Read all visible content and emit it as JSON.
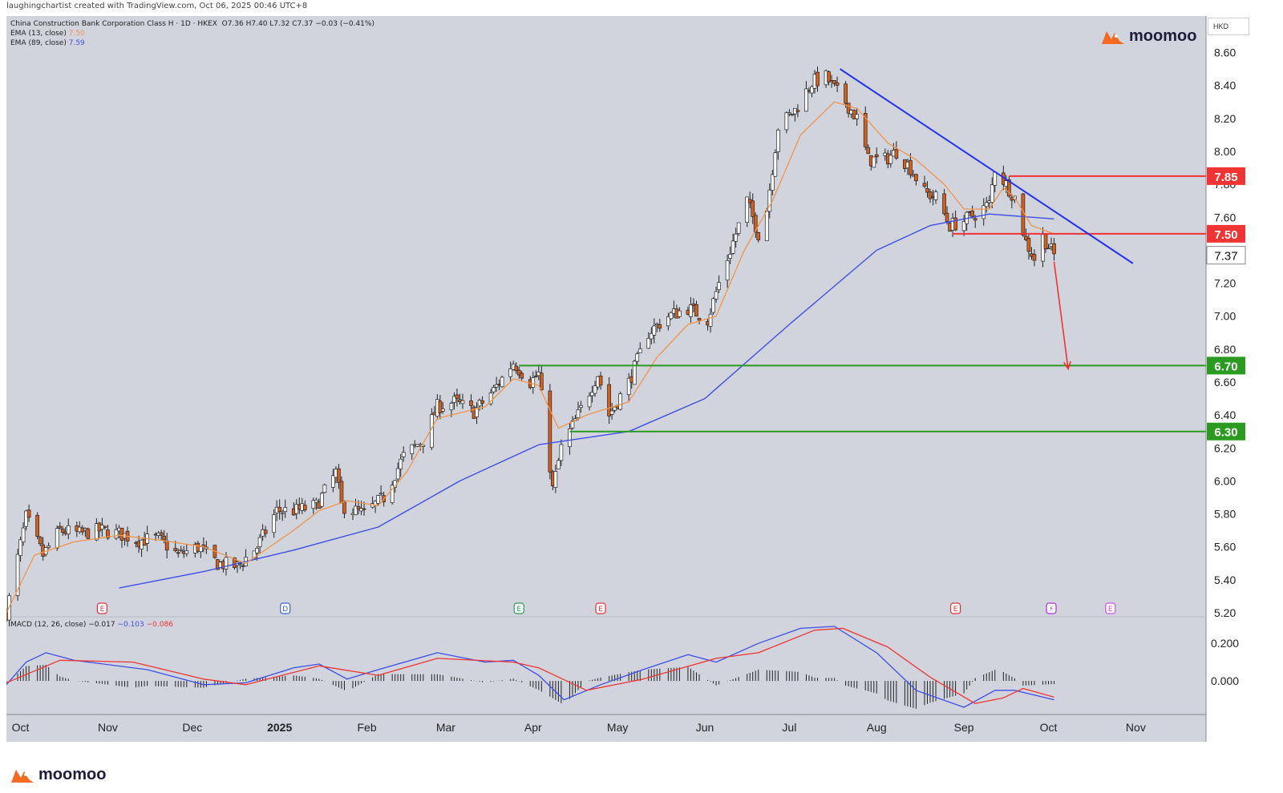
{
  "header": {
    "credit": "laughingchartist created with TradingView.com, Oct 06, 2025 00:46 UTC+8"
  },
  "legend": {
    "symbol": "China Construction Bank Corporation Class H · 1D · HKEX",
    "ohlc": "O7.36  H7.40  L7.32  C7.37  −0.03 (−0.41%)",
    "ema13_label": "EMA (13, close)",
    "ema13_value": "7.50",
    "ema89_label": "EMA (89, close)",
    "ema89_value": "7.59",
    "macd_label": "MACD (12, 26, close)",
    "macd_hist": "−0.017",
    "macd_line": "−0.103",
    "macd_signal": "−0.086"
  },
  "logo": {
    "text": "moomoo"
  },
  "currency": "HKD",
  "colors": {
    "background": "#d1d4dc",
    "candle_up": "#ffffff",
    "candle_down": "#d35f1f",
    "ema13": "#f0944a",
    "ema89": "#3d4fe6",
    "trendline": "#2432f0",
    "resistance": "#f03333",
    "support": "#2a9a20",
    "macd": "#3d4fe6",
    "signal": "#f03333"
  },
  "chart_data": {
    "type": "candlestick",
    "ylim": [
      5.2,
      8.7
    ],
    "y_ticks": [
      "8.60",
      "8.40",
      "8.20",
      "8.00",
      "7.80",
      "7.60",
      "7.40",
      "7.20",
      "7.00",
      "6.80",
      "6.60",
      "6.40",
      "6.20",
      "6.00",
      "5.80",
      "5.60",
      "5.40",
      "5.20"
    ],
    "x_ticks": [
      "Oct",
      "Nov",
      "Dec",
      "2025",
      "Feb",
      "Mar",
      "Apr",
      "May",
      "Jun",
      "Jul",
      "Aug",
      "Sep",
      "Oct",
      "Nov"
    ],
    "last_price": "7.37",
    "levels": [
      {
        "value": 7.85,
        "label": "7.85",
        "kind": "resistance",
        "from": "2025-09-17"
      },
      {
        "value": 7.5,
        "label": "7.50",
        "kind": "resistance",
        "from": "2025-08-28"
      },
      {
        "value": 6.7,
        "label": "6.70",
        "kind": "support",
        "from": "2025-03-27"
      },
      {
        "value": 6.3,
        "label": "6.30",
        "kind": "support",
        "from": "2025-04-14"
      }
    ],
    "trendline": {
      "from": [
        "2025-07-19",
        8.5
      ],
      "to": [
        "2025-10-31",
        7.32
      ]
    },
    "projection_arrow": {
      "from": [
        "2025-10-03",
        7.33
      ],
      "to": [
        "2025-10-08",
        6.68
      ]
    },
    "price_path": [
      [
        "2024-09-26",
        5.2
      ],
      [
        "2024-10-03",
        5.78
      ],
      [
        "2024-10-09",
        5.55
      ],
      [
        "2024-10-15",
        5.7
      ],
      [
        "2024-10-22",
        5.68
      ],
      [
        "2024-10-29",
        5.7
      ],
      [
        "2024-11-05",
        5.68
      ],
      [
        "2024-11-12",
        5.64
      ],
      [
        "2024-11-19",
        5.65
      ],
      [
        "2024-11-26",
        5.55
      ],
      [
        "2024-12-03",
        5.6
      ],
      [
        "2024-12-10",
        5.5
      ],
      [
        "2024-12-17",
        5.48
      ],
      [
        "2024-12-24",
        5.6
      ],
      [
        "2024-12-31",
        5.82
      ],
      [
        "2025-01-07",
        5.82
      ],
      [
        "2025-01-14",
        5.85
      ],
      [
        "2025-01-21",
        6.05
      ],
      [
        "2025-01-23",
        5.85
      ],
      [
        "2025-01-31",
        5.8
      ],
      [
        "2025-02-07",
        5.9
      ],
      [
        "2025-02-14",
        6.15
      ],
      [
        "2025-02-21",
        6.25
      ],
      [
        "2025-02-26",
        6.45
      ],
      [
        "2025-03-04",
        6.48
      ],
      [
        "2025-03-11",
        6.42
      ],
      [
        "2025-03-18",
        6.55
      ],
      [
        "2025-03-25",
        6.72
      ],
      [
        "2025-03-31",
        6.6
      ],
      [
        "2025-04-03",
        6.65
      ],
      [
        "2025-04-08",
        5.95
      ],
      [
        "2025-04-11",
        6.2
      ],
      [
        "2025-04-17",
        6.4
      ],
      [
        "2025-04-24",
        6.65
      ],
      [
        "2025-04-28",
        6.4
      ],
      [
        "2025-05-05",
        6.6
      ],
      [
        "2025-05-12",
        6.9
      ],
      [
        "2025-05-19",
        7.0
      ],
      [
        "2025-05-26",
        7.05
      ],
      [
        "2025-06-02",
        6.98
      ],
      [
        "2025-06-06",
        7.2
      ],
      [
        "2025-06-12",
        7.5
      ],
      [
        "2025-06-16",
        7.7
      ],
      [
        "2025-06-20",
        7.5
      ],
      [
        "2025-06-23",
        7.65
      ],
      [
        "2025-06-27",
        8.15
      ],
      [
        "2025-07-03",
        8.25
      ],
      [
        "2025-07-09",
        8.42
      ],
      [
        "2025-07-14",
        8.45
      ],
      [
        "2025-07-17",
        8.38
      ],
      [
        "2025-07-21",
        8.3
      ],
      [
        "2025-07-25",
        8.2
      ],
      [
        "2025-07-29",
        7.95
      ],
      [
        "2025-08-04",
        7.95
      ],
      [
        "2025-08-08",
        8.0
      ],
      [
        "2025-08-13",
        7.9
      ],
      [
        "2025-08-18",
        7.75
      ],
      [
        "2025-08-22",
        7.72
      ],
      [
        "2025-08-27",
        7.55
      ],
      [
        "2025-09-01",
        7.58
      ],
      [
        "2025-09-05",
        7.62
      ],
      [
        "2025-09-10",
        7.68
      ],
      [
        "2025-09-12",
        7.9
      ],
      [
        "2025-09-16",
        7.8
      ],
      [
        "2025-09-19",
        7.72
      ],
      [
        "2025-09-23",
        7.45
      ],
      [
        "2025-09-26",
        7.35
      ],
      [
        "2025-09-29",
        7.48
      ],
      [
        "2025-10-03",
        7.37
      ]
    ],
    "ema13_path": [
      [
        "2024-09-26",
        5.2
      ],
      [
        "2024-10-06",
        5.55
      ],
      [
        "2024-10-20",
        5.63
      ],
      [
        "2024-11-05",
        5.67
      ],
      [
        "2024-11-20",
        5.64
      ],
      [
        "2024-12-05",
        5.6
      ],
      [
        "2024-12-20",
        5.5
      ],
      [
        "2025-01-06",
        5.7
      ],
      [
        "2025-01-15",
        5.82
      ],
      [
        "2025-01-25",
        5.88
      ],
      [
        "2025-02-05",
        5.85
      ],
      [
        "2025-02-15",
        6.05
      ],
      [
        "2025-02-26",
        6.38
      ],
      [
        "2025-03-15",
        6.45
      ],
      [
        "2025-03-25",
        6.62
      ],
      [
        "2025-04-03",
        6.58
      ],
      [
        "2025-04-10",
        6.32
      ],
      [
        "2025-04-20",
        6.4
      ],
      [
        "2025-05-05",
        6.48
      ],
      [
        "2025-05-15",
        6.75
      ],
      [
        "2025-05-26",
        6.95
      ],
      [
        "2025-06-05",
        7.0
      ],
      [
        "2025-06-15",
        7.4
      ],
      [
        "2025-06-25",
        7.7
      ],
      [
        "2025-07-05",
        8.1
      ],
      [
        "2025-07-17",
        8.3
      ],
      [
        "2025-07-25",
        8.26
      ],
      [
        "2025-08-05",
        8.05
      ],
      [
        "2025-08-15",
        7.95
      ],
      [
        "2025-08-25",
        7.8
      ],
      [
        "2025-09-01",
        7.65
      ],
      [
        "2025-09-10",
        7.65
      ],
      [
        "2025-09-15",
        7.78
      ],
      [
        "2025-09-19",
        7.72
      ],
      [
        "2025-09-25",
        7.55
      ],
      [
        "2025-10-03",
        7.5
      ]
    ],
    "ema89_path": [
      [
        "2024-11-05",
        5.35
      ],
      [
        "2024-12-05",
        5.45
      ],
      [
        "2025-01-06",
        5.58
      ],
      [
        "2025-02-05",
        5.72
      ],
      [
        "2025-03-06",
        6.0
      ],
      [
        "2025-04-03",
        6.22
      ],
      [
        "2025-05-05",
        6.3
      ],
      [
        "2025-06-01",
        6.5
      ],
      [
        "2025-07-01",
        6.95
      ],
      [
        "2025-08-01",
        7.4
      ],
      [
        "2025-08-20",
        7.55
      ],
      [
        "2025-09-10",
        7.62
      ],
      [
        "2025-10-03",
        7.59
      ]
    ],
    "macd": {
      "ylim": [
        -0.17,
        0.32
      ],
      "y_ticks": [
        "0.200",
        "0.000"
      ],
      "macd_path": [
        [
          "2024-09-26",
          -0.02
        ],
        [
          "2024-10-03",
          0.1
        ],
        [
          "2024-10-10",
          0.15
        ],
        [
          "2024-10-20",
          0.11
        ],
        [
          "2024-11-15",
          0.06
        ],
        [
          "2024-12-05",
          -0.02
        ],
        [
          "2024-12-20",
          -0.01
        ],
        [
          "2025-01-06",
          0.07
        ],
        [
          "2025-01-15",
          0.09
        ],
        [
          "2025-01-25",
          0.01
        ],
        [
          "2025-02-05",
          0.06
        ],
        [
          "2025-02-26",
          0.15
        ],
        [
          "2025-03-15",
          0.1
        ],
        [
          "2025-03-25",
          0.11
        ],
        [
          "2025-04-03",
          0.03
        ],
        [
          "2025-04-12",
          -0.1
        ],
        [
          "2025-04-25",
          -0.02
        ],
        [
          "2025-05-10",
          0.06
        ],
        [
          "2025-05-26",
          0.14
        ],
        [
          "2025-06-05",
          0.1
        ],
        [
          "2025-06-20",
          0.2
        ],
        [
          "2025-07-05",
          0.28
        ],
        [
          "2025-07-17",
          0.29
        ],
        [
          "2025-08-01",
          0.15
        ],
        [
          "2025-08-15",
          -0.05
        ],
        [
          "2025-09-01",
          -0.14
        ],
        [
          "2025-09-12",
          -0.05
        ],
        [
          "2025-09-19",
          -0.05
        ],
        [
          "2025-10-03",
          -0.1
        ]
      ],
      "signal_path": [
        [
          "2024-09-26",
          -0.01
        ],
        [
          "2024-10-15",
          0.11
        ],
        [
          "2024-11-10",
          0.1
        ],
        [
          "2024-12-05",
          0.01
        ],
        [
          "2024-12-20",
          -0.02
        ],
        [
          "2025-01-15",
          0.08
        ],
        [
          "2025-02-05",
          0.03
        ],
        [
          "2025-02-26",
          0.12
        ],
        [
          "2025-03-25",
          0.1
        ],
        [
          "2025-04-03",
          0.07
        ],
        [
          "2025-04-20",
          -0.05
        ],
        [
          "2025-05-10",
          0.01
        ],
        [
          "2025-06-05",
          0.12
        ],
        [
          "2025-06-20",
          0.15
        ],
        [
          "2025-07-10",
          0.27
        ],
        [
          "2025-07-20",
          0.28
        ],
        [
          "2025-08-05",
          0.18
        ],
        [
          "2025-08-20",
          0.02
        ],
        [
          "2025-09-05",
          -0.12
        ],
        [
          "2025-09-15",
          -0.09
        ],
        [
          "2025-09-22",
          -0.04
        ],
        [
          "2025-10-03",
          -0.086
        ]
      ]
    },
    "events": [
      {
        "date": "2024-10-30",
        "label": "E",
        "color": "#e0303a"
      },
      {
        "date": "2025-01-03",
        "label": "D",
        "color": "#3a5fe6"
      },
      {
        "date": "2025-03-27",
        "label": "E",
        "color": "#2a9a50"
      },
      {
        "date": "2025-04-25",
        "label": "E",
        "color": "#e0303a"
      },
      {
        "date": "2025-08-29",
        "label": "E",
        "color": "#e0303a"
      },
      {
        "date": "2025-10-02",
        "label": "⚡",
        "color": "#b030d0"
      },
      {
        "date": "2025-10-23",
        "label": "E",
        "color": "#d050e0"
      }
    ]
  }
}
